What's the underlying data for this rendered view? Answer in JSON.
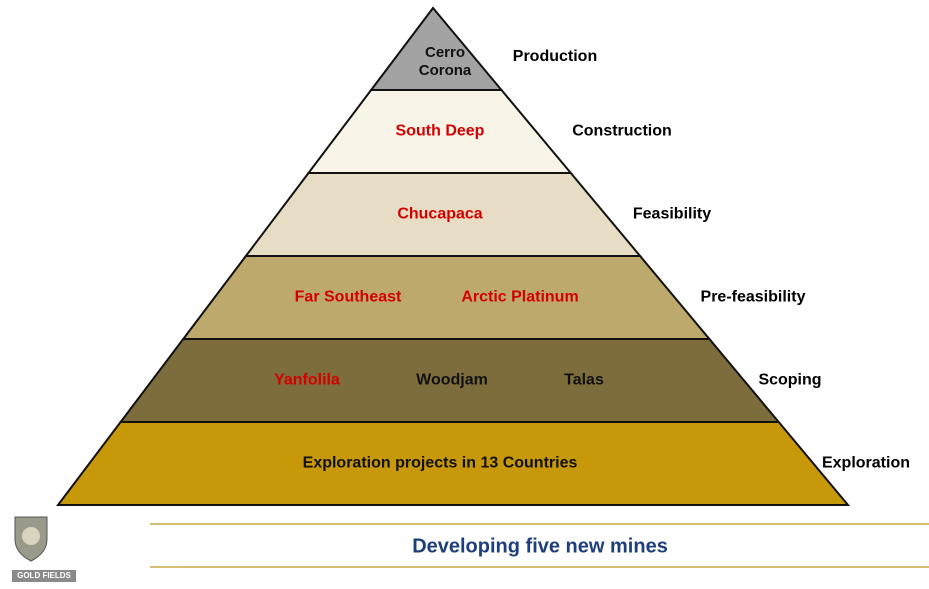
{
  "diagram": {
    "layers": [
      {
        "stage": "Production",
        "fill": "#a3a3a3",
        "projects": [
          {
            "name": "Cerro",
            "color": "#111111"
          },
          {
            "name": "Corona",
            "color": "#111111"
          }
        ]
      },
      {
        "stage": "Construction",
        "fill": "#f8f4e8",
        "projects": [
          {
            "name": "South Deep",
            "color": "#d40000"
          }
        ]
      },
      {
        "stage": "Feasibility",
        "fill": "#e6ddc4",
        "projects": [
          {
            "name": "Chucapaca",
            "color": "#d40000"
          }
        ]
      },
      {
        "stage": "Pre-feasibility",
        "fill": "#bda96c",
        "projects": [
          {
            "name": "Far Southeast",
            "color": "#d40000"
          },
          {
            "name": "Arctic Platinum",
            "color": "#d40000"
          }
        ]
      },
      {
        "stage": "Scoping",
        "fill": "#7d6d3d",
        "projects": [
          {
            "name": "Yanfolila",
            "color": "#d40000"
          },
          {
            "name": "Woodjam",
            "color": "#111111"
          },
          {
            "name": "Talas",
            "color": "#111111"
          }
        ]
      },
      {
        "stage": "Exploration",
        "fill": "#c8980b",
        "projects": [
          {
            "name": "Exploration projects in 13 Countries",
            "color": "#111111"
          }
        ]
      }
    ],
    "footer": "Developing five new mines",
    "logo": "GOLD FIELDS"
  }
}
